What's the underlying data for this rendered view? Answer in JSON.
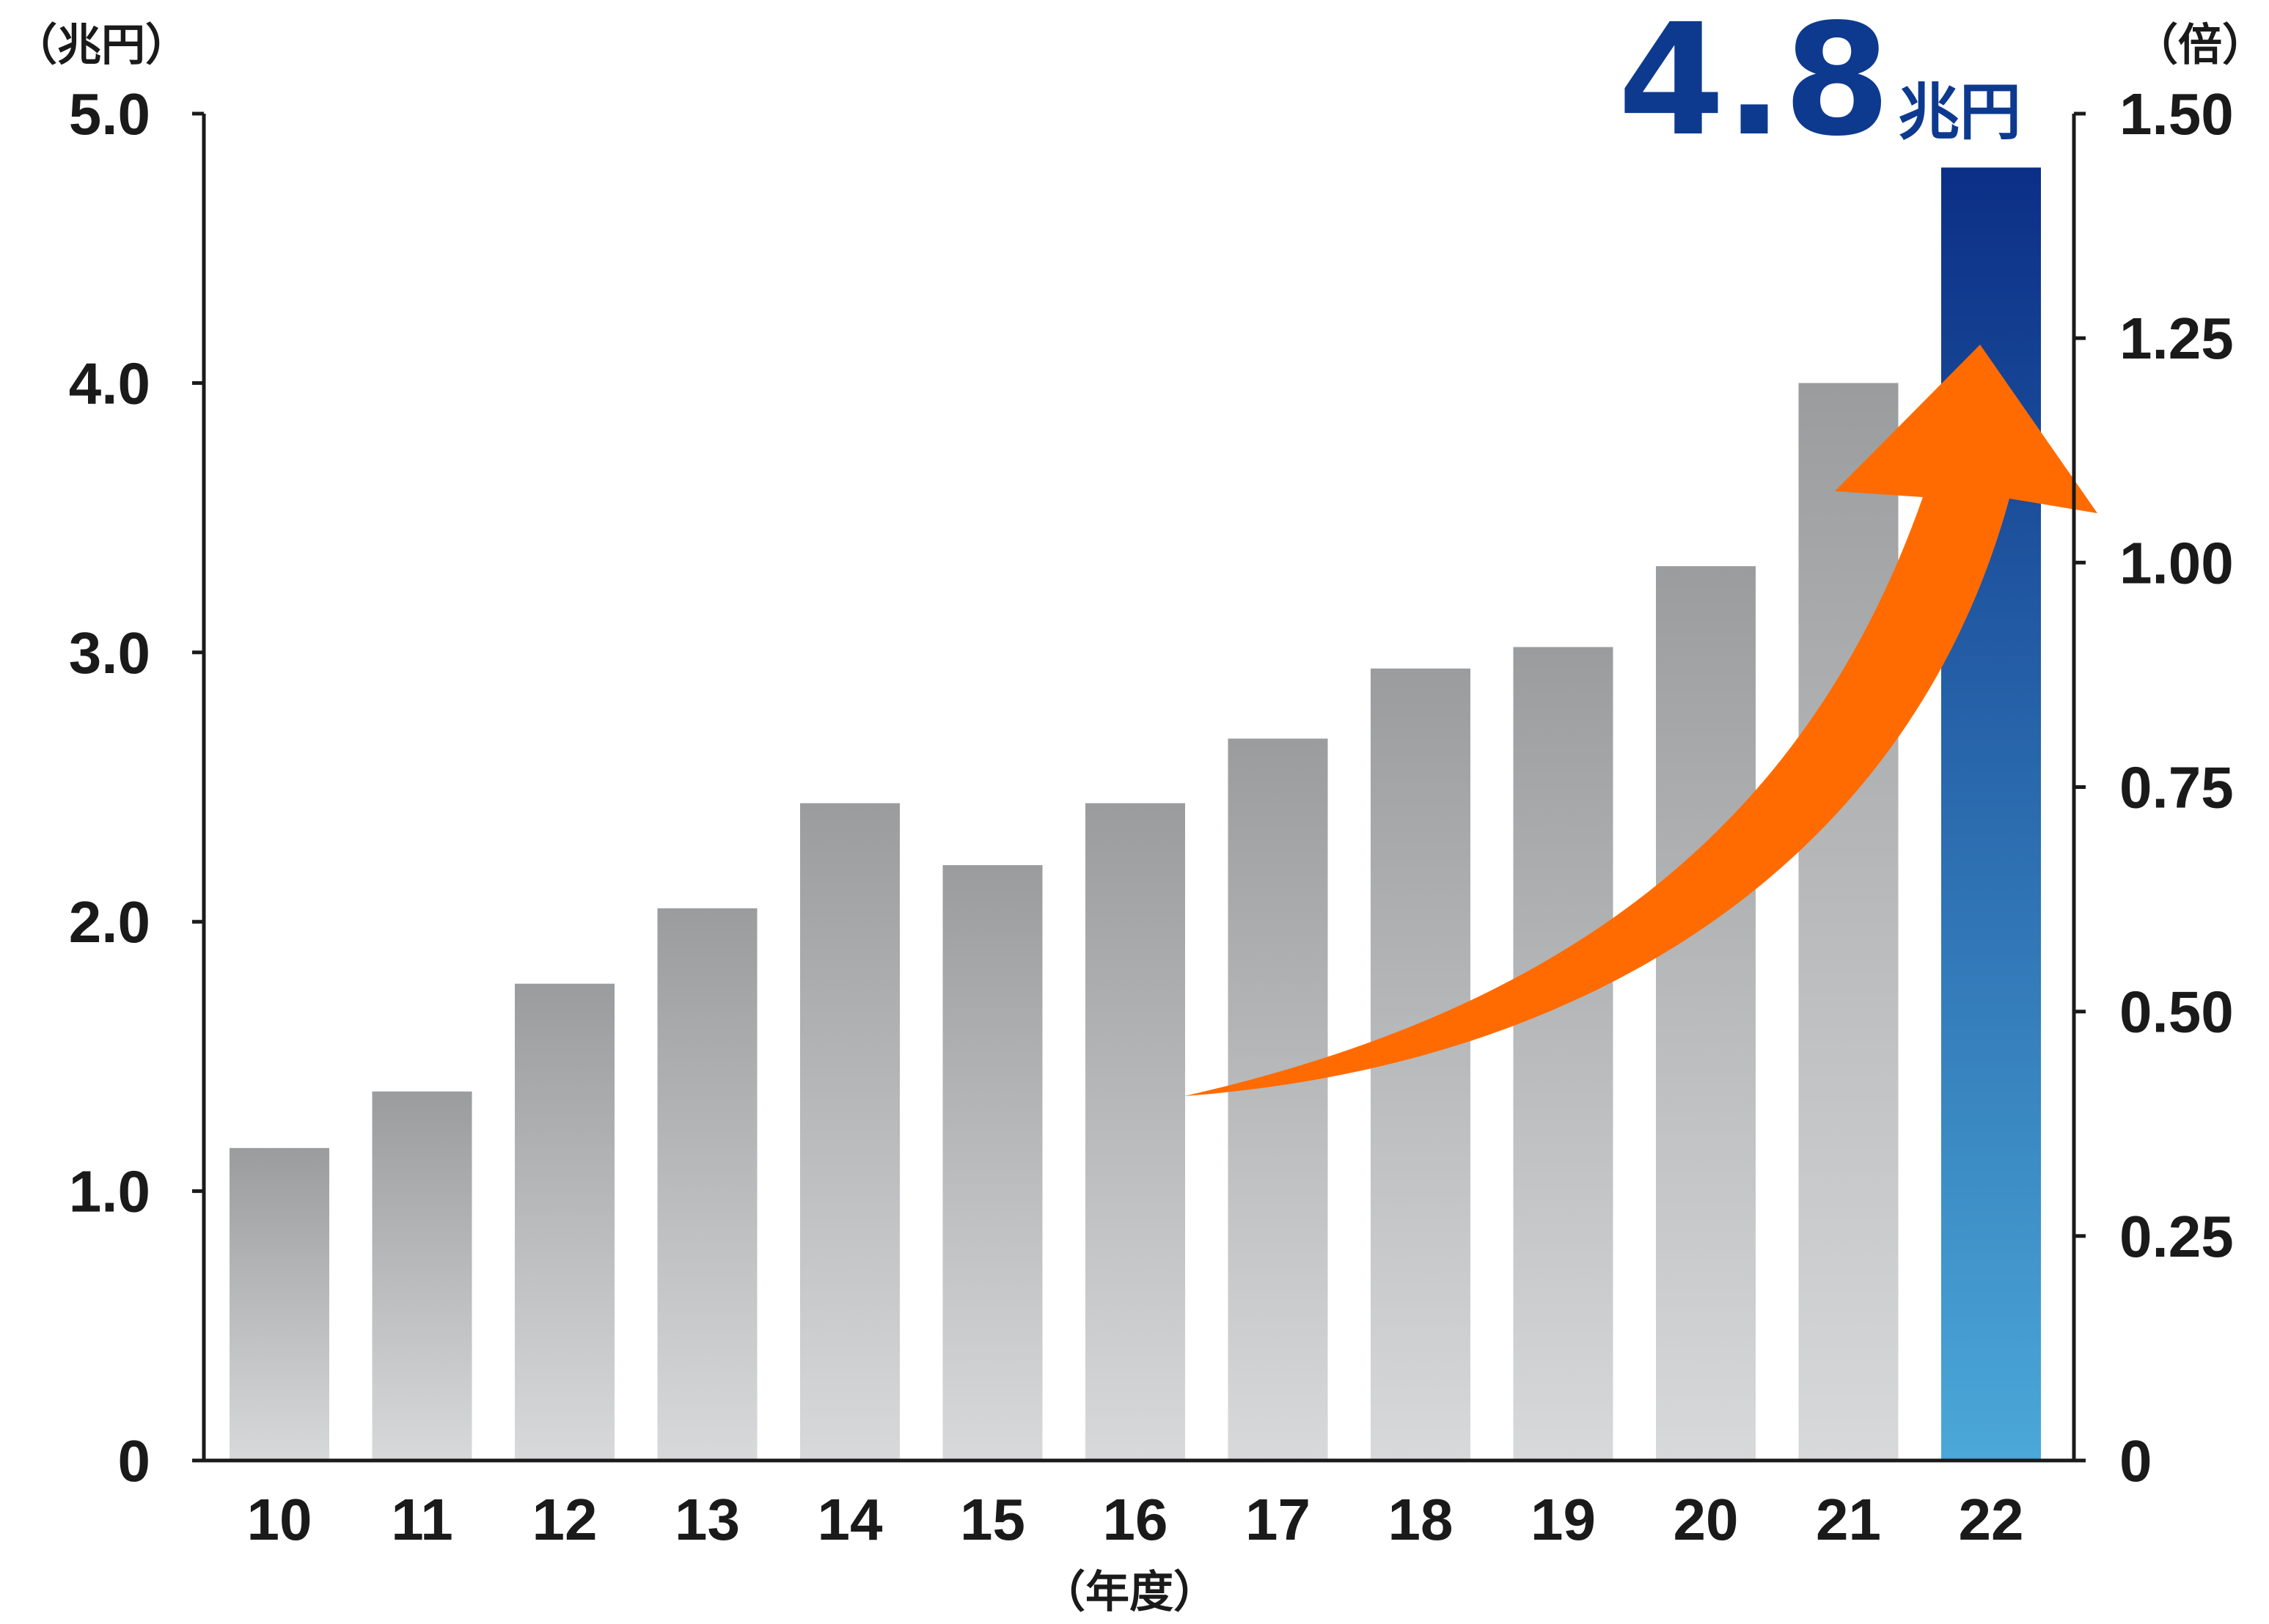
{
  "chart_data": {
    "type": "bar",
    "categories": [
      "10",
      "11",
      "12",
      "13",
      "14",
      "15",
      "16",
      "17",
      "18",
      "19",
      "20",
      "21",
      "22"
    ],
    "values": [
      1.16,
      1.37,
      1.77,
      2.05,
      2.44,
      2.21,
      2.44,
      2.68,
      2.94,
      3.02,
      3.32,
      4.0,
      4.8
    ],
    "ylim": [
      0,
      5.0
    ],
    "yticks": [
      "0",
      "1.0",
      "2.0",
      "3.0",
      "4.0",
      "5.0"
    ],
    "y2lim": [
      0,
      1.5
    ],
    "y2ticks": [
      "0",
      "0.25",
      "0.50",
      "0.75",
      "1.00",
      "1.25",
      "1.50"
    ],
    "yunit": "（兆円）",
    "y2unit": "（倍）",
    "xlabel": "（年度）",
    "highlight": {
      "category": "22",
      "value_text": "4.8",
      "unit_text": "兆円"
    },
    "colors": {
      "bar_top": "#9a9c9d",
      "bar_bottom": "#d8d9db",
      "highlight_top": "#0b2f86",
      "highlight_bottom": "#4ba8d8",
      "arrow": "#ff6b00"
    }
  }
}
